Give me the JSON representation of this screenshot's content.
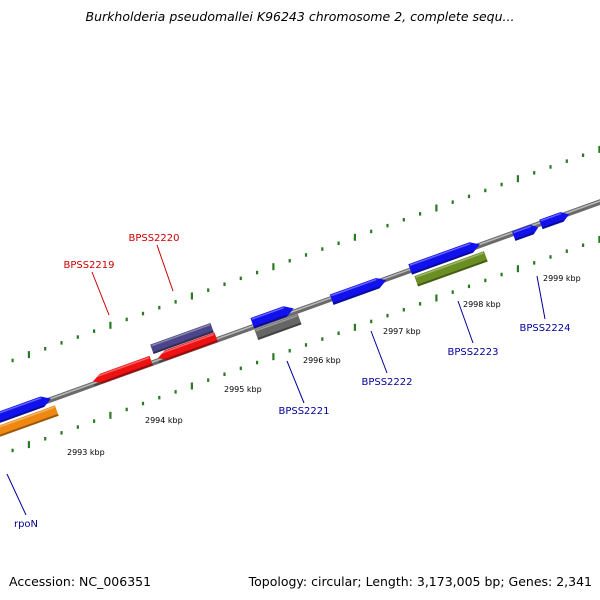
{
  "title": "Burkholderia pseudomallei K96243 chromosome 2, complete sequ...",
  "footer": {
    "accession": "Accession: NC_006351",
    "summary": "Topology: circular; Length: 3,173,005 bp; Genes: 2,341"
  },
  "colors": {
    "backbone": "#888888",
    "tick": "#2a7a22",
    "label_red": "#cc0000",
    "label_blue": "#000099"
  },
  "scale_ticks": [
    "2993 kbp",
    "2994 kbp",
    "2995 kbp",
    "2996 kbp",
    "2997 kbp",
    "2998 kbp",
    "2999 kbp"
  ],
  "features": [
    {
      "name": "BPSS2219",
      "strand": "reverse",
      "color": "#ee1111"
    },
    {
      "name": "BPSS2220",
      "strand": "reverse",
      "color": "#ee1111"
    },
    {
      "name": "",
      "strand": "none",
      "color": "#4a4488"
    },
    {
      "name": "rpoN",
      "strand": "forward",
      "color": "#1111ee"
    },
    {
      "name": "",
      "strand": "none",
      "color": "#ee8811"
    },
    {
      "name": "BPSS2221",
      "strand": "forward",
      "color": "#1111ee"
    },
    {
      "name": "",
      "strand": "none",
      "color": "#666666"
    },
    {
      "name": "BPSS2222",
      "strand": "forward",
      "color": "#1111ee"
    },
    {
      "name": "BPSS2223",
      "strand": "forward",
      "color": "#1111ee"
    },
    {
      "name": "",
      "strand": "none",
      "color": "#6b8e23"
    },
    {
      "name": "",
      "strand": "forward",
      "color": "#1111ee"
    },
    {
      "name": "BPSS2224",
      "strand": "forward",
      "color": "#1111ee"
    }
  ]
}
